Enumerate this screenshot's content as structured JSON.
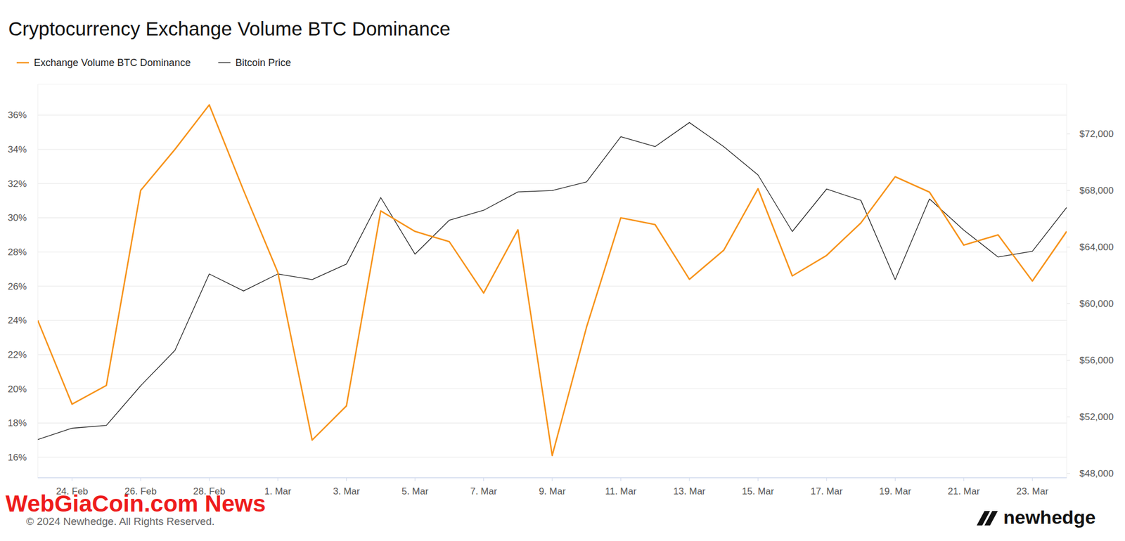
{
  "chart_data": {
    "type": "line",
    "title": "Cryptocurrency Exchange Volume BTC Dominance",
    "categories": [
      null,
      "24. Feb",
      null,
      "26. Feb",
      null,
      "28. Feb",
      null,
      "1. Mar",
      null,
      "3. Mar",
      null,
      "5. Mar",
      null,
      "7. Mar",
      null,
      "9. Mar",
      null,
      "11. Mar",
      null,
      "13. Mar",
      null,
      "15. Mar",
      null,
      "17. Mar",
      null,
      "19. Mar",
      null,
      "21. Mar",
      null,
      "23. Mar",
      null
    ],
    "series": [
      {
        "name": "Exchange Volume BTC Dominance",
        "color": "#f7931a",
        "values": [
          24.0,
          19.1,
          20.2,
          31.6,
          34.0,
          36.6,
          31.6,
          26.8,
          17.0,
          19.0,
          30.4,
          29.2,
          28.6,
          25.6,
          29.3,
          16.1,
          23.6,
          30.0,
          29.6,
          26.4,
          28.1,
          31.7,
          26.6,
          27.8,
          29.7,
          32.4,
          31.5,
          28.4,
          29.0,
          26.3,
          29.2
        ]
      },
      {
        "name": "Bitcoin Price",
        "color": "#222222",
        "axis": "y2",
        "values": [
          50400,
          51200,
          51400,
          54200,
          56700,
          62100,
          60900,
          62100,
          61700,
          62800,
          67500,
          63500,
          65900,
          66600,
          67900,
          68000,
          68600,
          71800,
          71100,
          72800,
          71100,
          69100,
          65100,
          68100,
          67300,
          61700,
          67400,
          65200,
          63300,
          63700,
          66800
        ]
      }
    ],
    "ylim": [
      14.8,
      37.8
    ],
    "yticks": [
      {
        "value": 16,
        "label": "16%"
      },
      {
        "value": 18,
        "label": "18%"
      },
      {
        "value": 20,
        "label": "20%"
      },
      {
        "value": 22,
        "label": "22%"
      },
      {
        "value": 24,
        "label": "24%"
      },
      {
        "value": 26,
        "label": "26%"
      },
      {
        "value": 28,
        "label": "28%"
      },
      {
        "value": 30,
        "label": "30%"
      },
      {
        "value": 32,
        "label": "32%"
      },
      {
        "value": 34,
        "label": "34%"
      },
      {
        "value": 36,
        "label": "36%"
      }
    ],
    "y2lim": [
      47700,
      75500
    ],
    "y2ticks": [
      {
        "value": 48000,
        "label": "$48,000"
      },
      {
        "value": 52000,
        "label": "$52,000"
      },
      {
        "value": 56000,
        "label": "$56,000"
      },
      {
        "value": 60000,
        "label": "$60,000"
      },
      {
        "value": 64000,
        "label": "$64,000"
      },
      {
        "value": 68000,
        "label": "$68,000"
      },
      {
        "value": 72000,
        "label": "$72,000"
      }
    ],
    "grid": true,
    "legend": "top-left",
    "annotations": [
      "WebGiaCoin.com News",
      "© 2024 Newhedge. All Rights Reserved.",
      "newhedge"
    ]
  }
}
